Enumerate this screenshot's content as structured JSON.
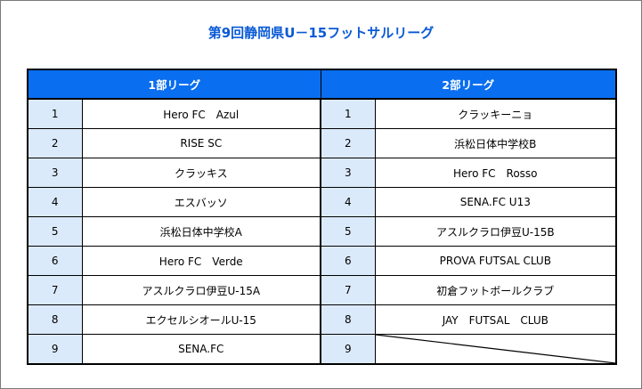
{
  "title": "第9回静岡県U－15フットサルリーグ",
  "columns": {
    "division1": "1部リーグ",
    "division2": "2部リーグ"
  },
  "rows": [
    {
      "n1": "1",
      "team1": "Hero FC　Azul",
      "n2": "1",
      "team2": "クラッキーニョ"
    },
    {
      "n1": "2",
      "team1": "RISE SC",
      "n2": "2",
      "team2": "浜松日体中学校B"
    },
    {
      "n1": "3",
      "team1": "クラッキス",
      "n2": "3",
      "team2": "Hero FC　Rosso"
    },
    {
      "n1": "4",
      "team1": "エスバッソ",
      "n2": "4",
      "team2": "SENA.FC U13"
    },
    {
      "n1": "5",
      "team1": "浜松日体中学校A",
      "n2": "5",
      "team2": "アスルクラロ伊豆U-15B"
    },
    {
      "n1": "6",
      "team1": "Hero FC　Verde",
      "n2": "6",
      "team2": "PROVA FUTSAL CLUB"
    },
    {
      "n1": "7",
      "team1": "アスルクラロ伊豆U-15A",
      "n2": "7",
      "team2": "初倉フットボールクラブ"
    },
    {
      "n1": "8",
      "team1": "エクセルシオールU-15",
      "n2": "8",
      "team2": "JAY　FUTSAL　CLUB"
    },
    {
      "n1": "9",
      "team1": "SENA.FC",
      "n2": "9",
      "team2": ""
    }
  ]
}
